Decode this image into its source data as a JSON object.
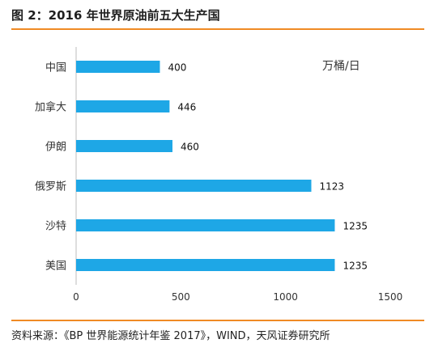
{
  "header": {
    "title": "图 2：2016 年世界原油前五大生产国"
  },
  "footer": {
    "source": "资料来源：《BP 世界能源统计年鉴 2017》，WIND，天风证券研究所"
  },
  "chart_data": {
    "type": "bar",
    "orientation": "horizontal",
    "unit_label": "万桶/日",
    "categories": [
      "中国",
      "加拿大",
      "伊朗",
      "俄罗斯",
      "沙特",
      "美国"
    ],
    "values": [
      400,
      446,
      460,
      1123,
      1235,
      1235
    ],
    "value_labels": [
      "400",
      "446",
      "460",
      "1123",
      "1235",
      "1235"
    ],
    "xlim": [
      0,
      1500
    ],
    "xticks": [
      "0",
      "500",
      "1000",
      "1500"
    ],
    "bar_color": "#1ea7e6",
    "grid": false
  }
}
